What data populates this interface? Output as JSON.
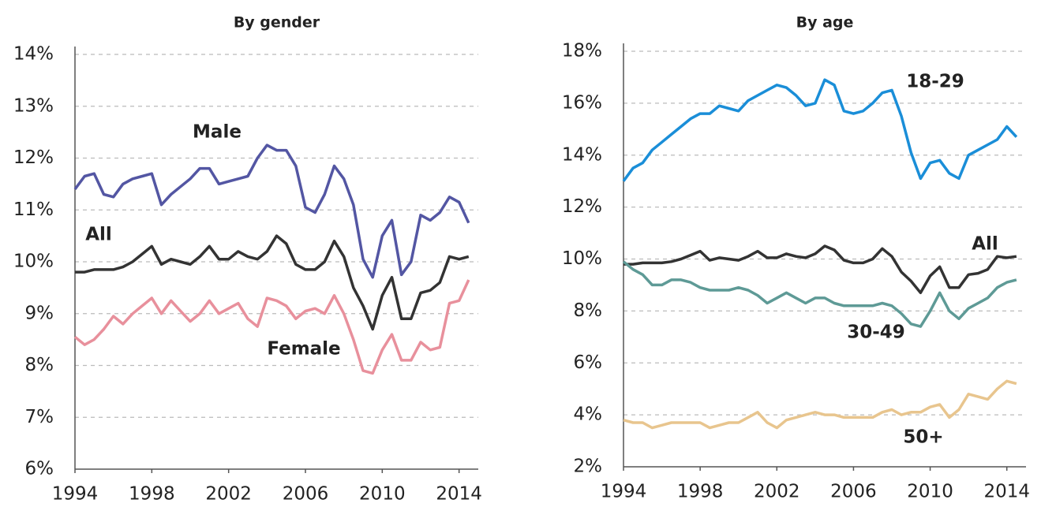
{
  "chart_data": [
    {
      "type": "line",
      "title": "By gender",
      "x": [
        1994,
        1994.5,
        1995,
        1995.5,
        1996,
        1996.5,
        1997,
        1997.5,
        1998,
        1998.5,
        1999,
        1999.5,
        2000,
        2000.5,
        2001,
        2001.5,
        2002,
        2002.5,
        2003,
        2003.5,
        2004,
        2004.5,
        2005,
        2005.5,
        2006,
        2006.5,
        2007,
        2007.5,
        2008,
        2008.5,
        2009,
        2009.5,
        2010,
        2010.5,
        2011,
        2011.5,
        2012,
        2012.5,
        2013,
        2013.5,
        2014,
        2014.5
      ],
      "series": [
        {
          "name": "Male",
          "color": "#5356a3",
          "values": [
            11.4,
            11.65,
            11.7,
            11.3,
            11.25,
            11.5,
            11.6,
            11.65,
            11.7,
            11.1,
            11.3,
            11.45,
            11.6,
            11.8,
            11.8,
            11.5,
            11.55,
            11.6,
            11.65,
            12.0,
            12.25,
            12.15,
            12.15,
            11.85,
            11.05,
            10.95,
            11.3,
            11.85,
            11.6,
            11.1,
            10.05,
            9.7,
            10.5,
            10.8,
            9.75,
            10.0,
            10.9,
            10.8,
            10.95,
            11.25,
            11.15,
            10.75
          ]
        },
        {
          "name": "All",
          "color": "#333333",
          "values": [
            9.8,
            9.8,
            9.85,
            9.85,
            9.85,
            9.9,
            10.0,
            10.15,
            10.3,
            9.95,
            10.05,
            10.0,
            9.95,
            10.1,
            10.3,
            10.05,
            10.05,
            10.2,
            10.1,
            10.05,
            10.2,
            10.5,
            10.35,
            9.95,
            9.85,
            9.85,
            10.0,
            10.4,
            10.1,
            9.5,
            9.15,
            8.7,
            9.35,
            9.7,
            8.9,
            8.9,
            9.4,
            9.45,
            9.6,
            10.1,
            10.05,
            10.1
          ]
        },
        {
          "name": "Female",
          "color": "#e8909c",
          "values": [
            8.55,
            8.4,
            8.5,
            8.7,
            8.95,
            8.8,
            9.0,
            9.15,
            9.3,
            9.0,
            9.25,
            9.05,
            8.85,
            9.0,
            9.25,
            9.0,
            9.1,
            9.2,
            8.9,
            8.75,
            9.3,
            9.25,
            9.15,
            8.9,
            9.05,
            9.1,
            9.0,
            9.35,
            9.0,
            8.5,
            7.9,
            7.85,
            8.3,
            8.6,
            8.1,
            8.1,
            8.45,
            8.3,
            8.35,
            9.2,
            9.25,
            9.65
          ]
        }
      ],
      "xlim": [
        1994,
        2015
      ],
      "xticks": [
        1994,
        1998,
        2002,
        2006,
        2010,
        2014
      ],
      "ylim": [
        6,
        14
      ],
      "yticks": [
        {
          "value": 6,
          "label": "6%"
        },
        {
          "value": 7,
          "label": "7%"
        },
        {
          "value": 8,
          "label": "8%"
        },
        {
          "value": 9,
          "label": "9%"
        },
        {
          "value": 10,
          "label": "10%"
        },
        {
          "value": 11,
          "label": "11%"
        },
        {
          "value": 12,
          "label": "12%"
        },
        {
          "value": 13,
          "label": "13%"
        },
        {
          "value": 14,
          "label": "14%"
        }
      ],
      "grid": true
    },
    {
      "type": "line",
      "title": "By age",
      "x": [
        1994,
        1994.5,
        1995,
        1995.5,
        1996,
        1996.5,
        1997,
        1997.5,
        1998,
        1998.5,
        1999,
        1999.5,
        2000,
        2000.5,
        2001,
        2001.5,
        2002,
        2002.5,
        2003,
        2003.5,
        2004,
        2004.5,
        2005,
        2005.5,
        2006,
        2006.5,
        2007,
        2007.5,
        2008,
        2008.5,
        2009,
        2009.5,
        2010,
        2010.5,
        2011,
        2011.5,
        2012,
        2012.5,
        2013,
        2013.5,
        2014,
        2014.5
      ],
      "series": [
        {
          "name": "18-29",
          "color": "#1a8ed8",
          "values": [
            13.0,
            13.5,
            13.7,
            14.2,
            14.5,
            14.8,
            15.1,
            15.4,
            15.6,
            15.6,
            15.9,
            15.8,
            15.7,
            16.1,
            16.3,
            16.5,
            16.7,
            16.6,
            16.3,
            15.9,
            16.0,
            16.9,
            16.7,
            15.7,
            15.6,
            15.7,
            16.0,
            16.4,
            16.5,
            15.5,
            14.1,
            13.1,
            13.7,
            13.8,
            13.3,
            13.1,
            14.0,
            14.2,
            14.4,
            14.6,
            15.1,
            14.7
          ]
        },
        {
          "name": "All",
          "color": "#333333",
          "values": [
            9.8,
            9.8,
            9.85,
            9.85,
            9.85,
            9.9,
            10.0,
            10.15,
            10.3,
            9.95,
            10.05,
            10.0,
            9.95,
            10.1,
            10.3,
            10.05,
            10.05,
            10.2,
            10.1,
            10.05,
            10.2,
            10.5,
            10.35,
            9.95,
            9.85,
            9.85,
            10.0,
            10.4,
            10.1,
            9.5,
            9.15,
            8.7,
            9.35,
            9.7,
            8.9,
            8.9,
            9.4,
            9.45,
            9.6,
            10.1,
            10.05,
            10.1
          ]
        },
        {
          "name": "30-49",
          "color": "#5e9a96",
          "values": [
            9.9,
            9.6,
            9.4,
            9.0,
            9.0,
            9.2,
            9.2,
            9.1,
            8.9,
            8.8,
            8.8,
            8.8,
            8.9,
            8.8,
            8.6,
            8.3,
            8.5,
            8.7,
            8.5,
            8.3,
            8.5,
            8.5,
            8.3,
            8.2,
            8.2,
            8.2,
            8.2,
            8.3,
            8.2,
            7.9,
            7.5,
            7.4,
            8.0,
            8.7,
            8.0,
            7.7,
            8.1,
            8.3,
            8.5,
            8.9,
            9.1,
            9.2
          ]
        },
        {
          "name": "50+",
          "color": "#e8c58e",
          "values": [
            3.8,
            3.7,
            3.7,
            3.5,
            3.6,
            3.7,
            3.7,
            3.7,
            3.7,
            3.5,
            3.6,
            3.7,
            3.7,
            3.9,
            4.1,
            3.7,
            3.5,
            3.8,
            3.9,
            4.0,
            4.1,
            4.0,
            4.0,
            3.9,
            3.9,
            3.9,
            3.9,
            4.1,
            4.2,
            4.0,
            4.1,
            4.1,
            4.3,
            4.4,
            3.9,
            4.2,
            4.8,
            4.7,
            4.6,
            5.0,
            5.3,
            5.2
          ]
        }
      ],
      "xlim": [
        1994,
        2015
      ],
      "xticks": [
        1994,
        1998,
        2002,
        2006,
        2010,
        2014
      ],
      "ylim": [
        2,
        18
      ],
      "yticks": [
        {
          "value": 2,
          "label": "2%"
        },
        {
          "value": 4,
          "label": "4%"
        },
        {
          "value": 6,
          "label": "6%"
        },
        {
          "value": 8,
          "label": "8%"
        },
        {
          "value": 10,
          "label": "10%"
        },
        {
          "value": 12,
          "label": "12%"
        },
        {
          "value": 14,
          "label": "14%"
        },
        {
          "value": 16,
          "label": "16%"
        },
        {
          "value": 18,
          "label": "18%"
        }
      ],
      "grid": true
    }
  ]
}
